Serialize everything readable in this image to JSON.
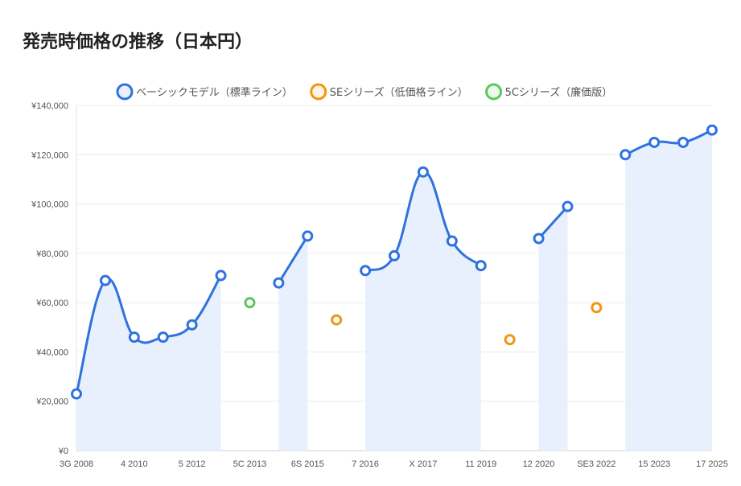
{
  "title": "発売時価格の推移（日本円）",
  "chart_data": {
    "type": "line",
    "title": "発売時価格の推移（日本円）",
    "xlabel": "",
    "ylabel": "",
    "ylim": [
      0,
      140000
    ],
    "yticks": [
      "¥0",
      "¥20,000",
      "¥40,000",
      "¥60,000",
      "¥80,000",
      "¥100,000",
      "¥120,000",
      "¥140,000"
    ],
    "legend_position": "top-center",
    "grid": true,
    "categories": [
      "3G 2008",
      "",
      "4 2010",
      "",
      "5 2012",
      "",
      "5C 2013",
      "",
      "6S 2015",
      "",
      "7 2016",
      "",
      "X 2017",
      "",
      "11 2019",
      "",
      "12 2020",
      "",
      "SE3 2022",
      "",
      "15 2023",
      "",
      "17 2025"
    ],
    "series": [
      {
        "name": "ベーシックモデル（標準ライン）",
        "color": "#2f72de",
        "fill": true,
        "values": [
          23000,
          69000,
          46000,
          46000,
          51000,
          71000,
          null,
          68000,
          87000,
          null,
          73000,
          79000,
          113000,
          85000,
          75000,
          null,
          86000,
          99000,
          null,
          120000,
          125000,
          125000,
          130000
        ]
      },
      {
        "name": "SEシリーズ（低価格ライン）",
        "color": "#f0960f",
        "fill": false,
        "values": [
          null,
          null,
          null,
          null,
          null,
          null,
          null,
          null,
          null,
          53000,
          null,
          null,
          null,
          null,
          null,
          45000,
          null,
          null,
          58000,
          null,
          null,
          null,
          null
        ]
      },
      {
        "name": "5Cシリーズ（廉価版）",
        "color": "#5ac85a",
        "fill": false,
        "values": [
          null,
          null,
          null,
          null,
          null,
          null,
          60000,
          null,
          null,
          null,
          null,
          null,
          null,
          null,
          null,
          null,
          null,
          null,
          null,
          null,
          null,
          null,
          null
        ]
      }
    ]
  }
}
